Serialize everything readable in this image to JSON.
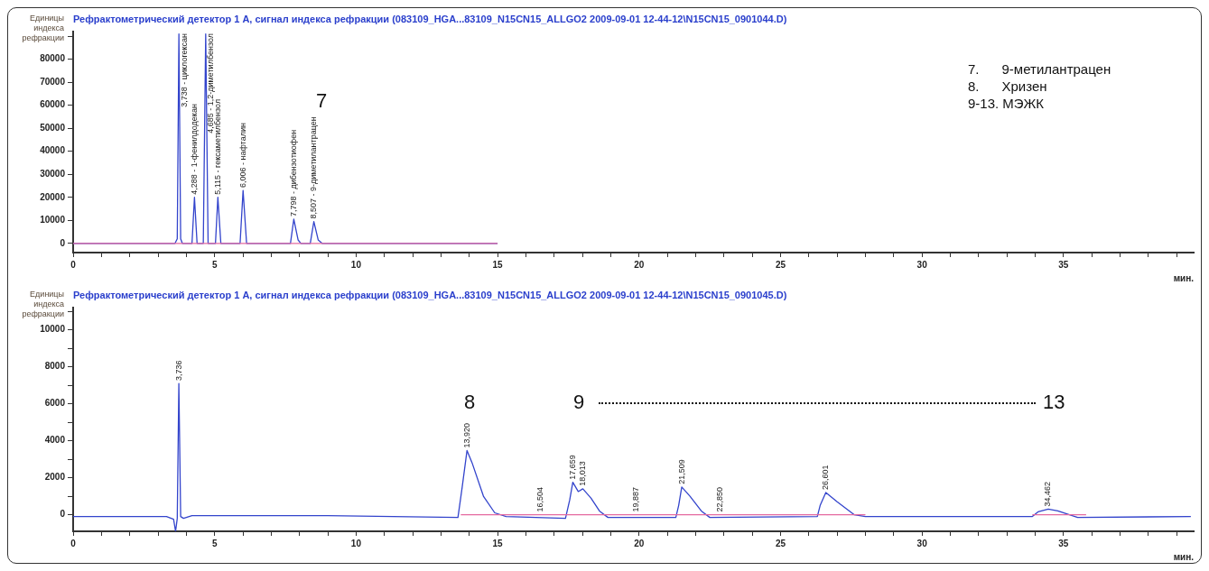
{
  "chart_data": [
    {
      "type": "line",
      "title": "Рефрактометрический детектор 1 A, сигнал индекса рефракции (083109_HGA...83109_N15CN15_ALLGO2 2009-09-01 12-44-12\\N15CN15_0901044.D)",
      "ylabel": "Единицы индекса рефракции",
      "xlabel": "мин.",
      "xlim": [
        0,
        39.6
      ],
      "ylim": [
        -4000,
        92000
      ],
      "xticks": [
        0,
        {
          "value": 1,
          "label": null
        },
        {
          "value": 2,
          "label": null
        },
        {
          "value": 3,
          "label": null
        },
        {
          "value": 4,
          "label": null
        },
        5,
        {
          "value": 6,
          "label": null
        },
        {
          "value": 7,
          "label": null
        },
        {
          "value": 8,
          "label": null
        },
        {
          "value": 9,
          "label": null
        },
        10,
        {
          "value": 11,
          "label": null
        },
        {
          "value": 12,
          "label": null
        },
        {
          "value": 13,
          "label": null
        },
        {
          "value": 14,
          "label": null
        },
        15,
        {
          "value": 16,
          "label": null
        },
        {
          "value": 17,
          "label": null
        },
        {
          "value": 18,
          "label": null
        },
        {
          "value": 19,
          "label": null
        },
        20,
        {
          "value": 21,
          "label": null
        },
        {
          "value": 22,
          "label": null
        },
        {
          "value": 23,
          "label": null
        },
        {
          "value": 24,
          "label": null
        },
        25,
        {
          "value": 26,
          "label": null
        },
        {
          "value": 27,
          "label": null
        },
        {
          "value": 28,
          "label": null
        },
        {
          "value": 29,
          "label": null
        },
        30,
        {
          "value": 31,
          "label": null
        },
        {
          "value": 32,
          "label": null
        },
        {
          "value": 33,
          "label": null
        },
        {
          "value": 34,
          "label": null
        },
        35,
        {
          "value": 36,
          "label": null
        },
        {
          "value": 37,
          "label": null
        },
        {
          "value": 38,
          "label": null
        },
        {
          "value": 39,
          "label": null
        }
      ],
      "yticks": [
        0,
        10000,
        20000,
        30000,
        40000,
        50000,
        60000,
        70000,
        80000,
        {
          "value": 90000,
          "label": null
        }
      ],
      "grid": false,
      "legend": false,
      "marker": "none",
      "line_style": "solid",
      "series": [
        {
          "color": "#3344cc",
          "x": [
            0,
            3.6,
            3.68,
            3.738,
            3.8,
            3.86,
            4.2,
            4.288,
            4.38,
            4.6,
            4.685,
            4.77,
            5.03,
            5.115,
            5.22,
            5.9,
            6.006,
            6.13,
            7.68,
            7.798,
            7.95,
            8.05,
            8.38,
            8.507,
            8.66,
            8.8,
            15
          ],
          "values": [
            0,
            0,
            2000,
            91000,
            2000,
            0,
            0,
            20000,
            0,
            0,
            91000,
            0,
            0,
            20000,
            0,
            0,
            23000,
            0,
            0,
            10500,
            1500,
            0,
            0,
            9500,
            1500,
            0,
            0
          ]
        },
        {
          "color": "#e46aa0",
          "x": [
            0,
            15
          ],
          "values": [
            0,
            0
          ]
        }
      ],
      "annotations": [
        {
          "text": "3,738 - циклогексан",
          "x": 3.738,
          "y": 91000
        },
        {
          "text": "4,288 - 1-фенилдодекан",
          "x": 4.288,
          "y": 20000
        },
        {
          "text": "4,685 - 1,2-диметилбензол",
          "x": 4.685,
          "y": 91000
        },
        {
          "text": "5,115 - гексаметилбензол",
          "x": 5.115,
          "y": 20000
        },
        {
          "text": "6,006 - нафталин",
          "x": 6.006,
          "y": 23000
        },
        {
          "text": "7,798 - дибензотиофен",
          "x": 7.798,
          "y": 10500
        },
        {
          "text": "8,507 - 9-диметилантрацен",
          "x": 8.507,
          "y": 9500
        },
        "7",
        "7.      9-метилантрацен",
        "8.      Хризен",
        "9-13. МЭЖК"
      ]
    },
    {
      "type": "line",
      "title": "Рефрактометрический детектор 1 A, сигнал индекса рефракции (083109_HGA...83109_N15CN15_ALLGO2 2009-09-01 12-44-12\\N15CN15_0901045.D)",
      "ylabel": "Единицы индекса рефракции",
      "xlabel": "мин.",
      "xlim": [
        0,
        39.6
      ],
      "ylim": [
        -900,
        11200
      ],
      "xticks": [
        0,
        {
          "value": 1,
          "label": null
        },
        {
          "value": 2,
          "label": null
        },
        {
          "value": 3,
          "label": null
        },
        {
          "value": 4,
          "label": null
        },
        5,
        {
          "value": 6,
          "label": null
        },
        {
          "value": 7,
          "label": null
        },
        {
          "value": 8,
          "label": null
        },
        {
          "value": 9,
          "label": null
        },
        10,
        {
          "value": 11,
          "label": null
        },
        {
          "value": 12,
          "label": null
        },
        {
          "value": 13,
          "label": null
        },
        {
          "value": 14,
          "label": null
        },
        15,
        {
          "value": 16,
          "label": null
        },
        {
          "value": 17,
          "label": null
        },
        {
          "value": 18,
          "label": null
        },
        {
          "value": 19,
          "label": null
        },
        20,
        {
          "value": 21,
          "label": null
        },
        {
          "value": 22,
          "label": null
        },
        {
          "value": 23,
          "label": null
        },
        {
          "value": 24,
          "label": null
        },
        25,
        {
          "value": 26,
          "label": null
        },
        {
          "value": 27,
          "label": null
        },
        {
          "value": 28,
          "label": null
        },
        {
          "value": 29,
          "label": null
        },
        30,
        {
          "value": 31,
          "label": null
        },
        {
          "value": 32,
          "label": null
        },
        {
          "value": 33,
          "label": null
        },
        {
          "value": 34,
          "label": null
        },
        35,
        {
          "value": 36,
          "label": null
        },
        {
          "value": 37,
          "label": null
        },
        {
          "value": 38,
          "label": null
        },
        {
          "value": 39,
          "label": null
        }
      ],
      "yticks": [
        0,
        {
          "value": 1000,
          "label": null
        },
        2000,
        {
          "value": 3000,
          "label": null
        },
        4000,
        {
          "value": 5000,
          "label": null
        },
        6000,
        {
          "value": 7000,
          "label": null
        },
        8000,
        {
          "value": 9000,
          "label": null
        },
        10000,
        {
          "value": 11000,
          "label": null
        }
      ],
      "grid": false,
      "legend": false,
      "marker": "none",
      "line_style": "solid",
      "series": [
        {
          "color": "#3344cc",
          "x": [
            0,
            3.3,
            3.55,
            3.62,
            3.68,
            3.736,
            3.8,
            3.9,
            4.2,
            9,
            13.6,
            13.75,
            13.92,
            14.1,
            14.5,
            14.9,
            15.3,
            17.4,
            17.55,
            17.659,
            17.85,
            18.013,
            18.3,
            18.6,
            18.9,
            21.3,
            21.4,
            21.509,
            21.8,
            22.2,
            22.5,
            26.3,
            26.4,
            26.601,
            27,
            27.6,
            28,
            33.9,
            34.1,
            34.462,
            34.8,
            35.5,
            39.5
          ],
          "values": [
            -100,
            -100,
            -250,
            -900,
            -200,
            7100,
            -100,
            -200,
            -50,
            -50,
            -150,
            1500,
            3470,
            2800,
            1000,
            100,
            -100,
            -200,
            800,
            1750,
            1250,
            1400,
            900,
            200,
            -150,
            -150,
            500,
            1500,
            1000,
            200,
            -150,
            -100,
            500,
            1200,
            700,
            0,
            -100,
            -100,
            150,
            300,
            200,
            -150,
            -100
          ]
        },
        {
          "color": "#e46aa0",
          "x": [
            13.7,
            28,
            28.1,
            33.9,
            35.8
          ],
          "values": [
            0,
            0,
            null,
            0,
            0
          ]
        }
      ],
      "annotations": [
        {
          "text": "3,736",
          "x": 3.736,
          "y": 7100
        },
        {
          "text": "13,920",
          "x": 13.92,
          "y": 3470
        },
        {
          "text": "16,504",
          "x": 16.504,
          "y": 0
        },
        {
          "text": "17,659",
          "x": 17.659,
          "y": 1750
        },
        {
          "text": "18,013",
          "x": 18.013,
          "y": 1400
        },
        {
          "text": "19,887",
          "x": 19.887,
          "y": 0
        },
        {
          "text": "21,509",
          "x": 21.509,
          "y": 1500
        },
        {
          "text": "22,850",
          "x": 22.85,
          "y": 0
        },
        {
          "text": "26,601",
          "x": 26.601,
          "y": 1200
        },
        {
          "text": "34,462",
          "x": 34.462,
          "y": 300
        },
        "8",
        "9",
        "13"
      ]
    }
  ]
}
